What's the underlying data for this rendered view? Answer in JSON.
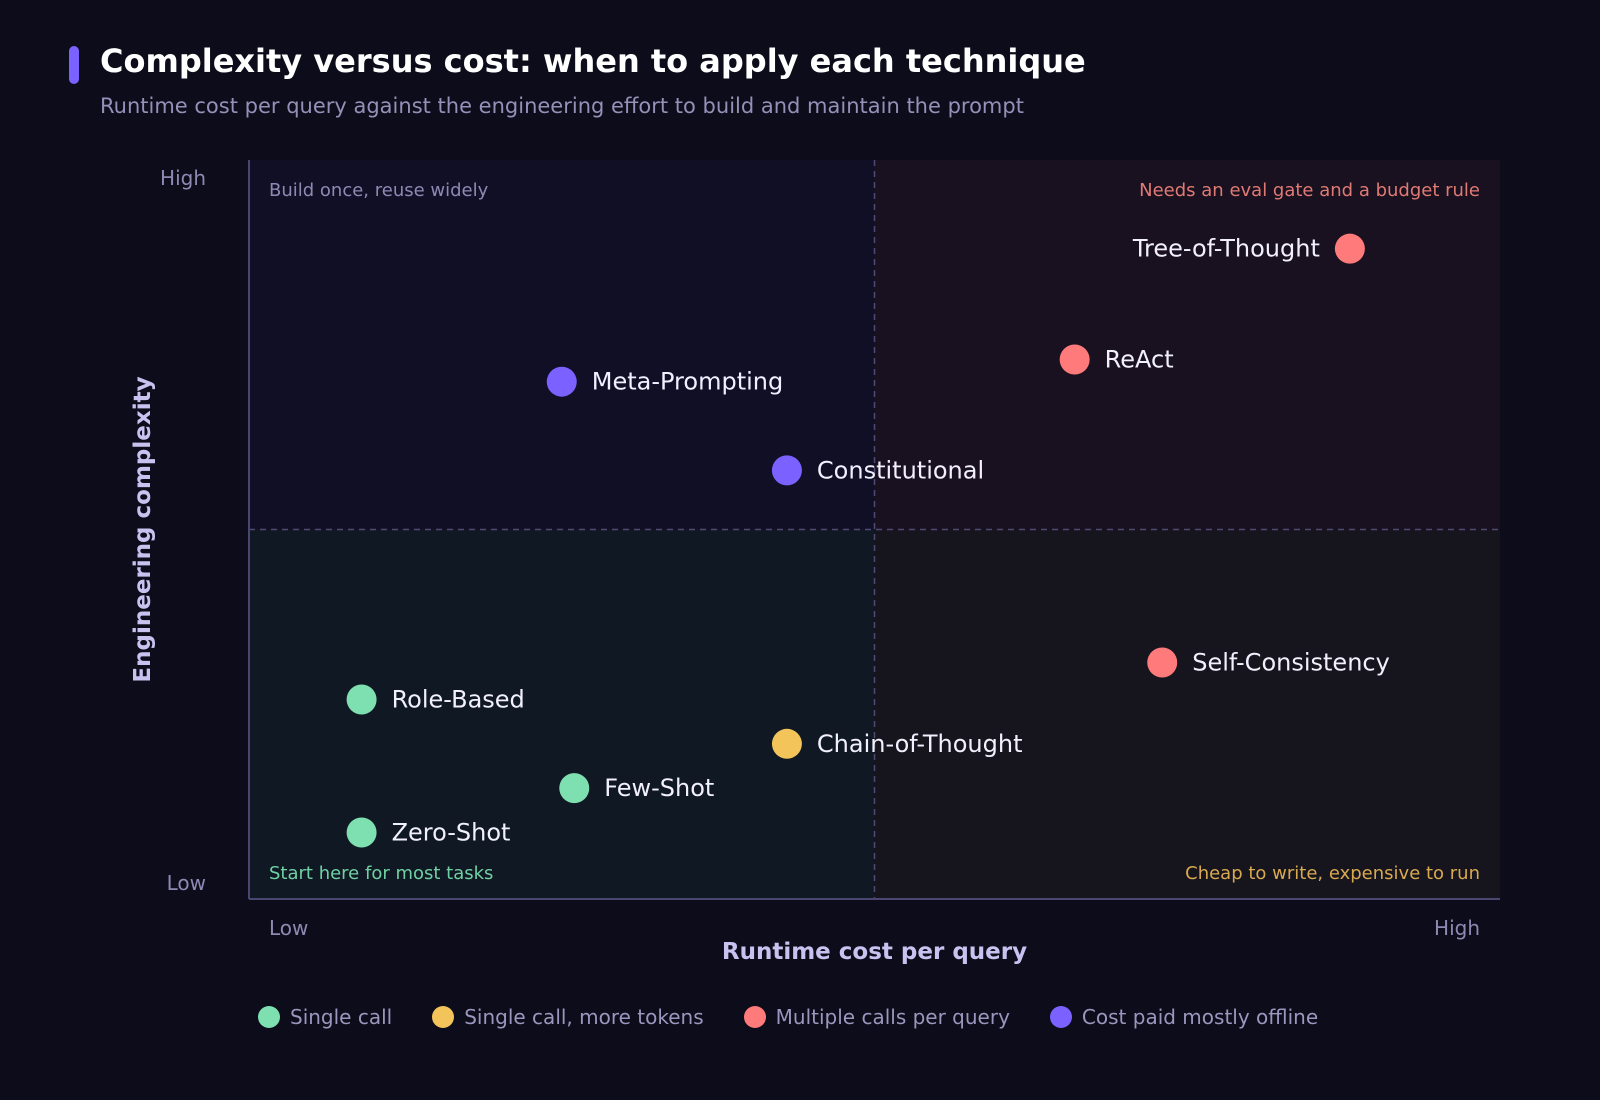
{
  "header": {
    "title": "Complexity versus cost: when to apply each technique",
    "subtitle": "Runtime cost per query against the engineering effort to build and maintain the prompt"
  },
  "colors": {
    "background": "#0c0c1a",
    "accent": "#7b61ff",
    "single_call": "#7ee0b0",
    "single_call_more_tokens": "#f2c45a",
    "multiple_calls": "#ff7b7b",
    "offline": "#7b61ff"
  },
  "chart_data": {
    "type": "scatter",
    "xlabel": "Runtime cost per query",
    "ylabel": "Engineering complexity",
    "x_ticks": [
      "Low",
      "High"
    ],
    "y_ticks": [
      "Low",
      "High"
    ],
    "xlim": [
      0,
      1
    ],
    "ylim": [
      0,
      1
    ],
    "grid": false,
    "legend_placement": "bottom",
    "quadrant_labels": {
      "top_left": "Build once, reuse widely",
      "top_right": "Needs an eval gate and a budget rule",
      "bottom_left": "Start here for most tasks",
      "bottom_right": "Cheap to write, expensive to run"
    },
    "categories": [
      {
        "key": "single",
        "name": "Single call",
        "color": "#7ee0b0"
      },
      {
        "key": "tokens",
        "name": "Single call, more tokens",
        "color": "#f2c45a"
      },
      {
        "key": "multi",
        "name": "Multiple calls per query",
        "color": "#ff7b7b"
      },
      {
        "key": "offline",
        "name": "Cost paid mostly offline",
        "color": "#7b61ff"
      }
    ],
    "points": [
      {
        "label": "Tree-of-Thought",
        "x": 0.88,
        "y": 0.88,
        "category": "multi",
        "label_side": "left"
      },
      {
        "label": "ReAct",
        "x": 0.66,
        "y": 0.73,
        "category": "multi",
        "label_side": "right"
      },
      {
        "label": "Meta-Prompting",
        "x": 0.25,
        "y": 0.7,
        "category": "offline",
        "label_side": "right"
      },
      {
        "label": "Constitutional",
        "x": 0.43,
        "y": 0.58,
        "category": "offline",
        "label_side": "right"
      },
      {
        "label": "Self-Consistency",
        "x": 0.73,
        "y": 0.32,
        "category": "multi",
        "label_side": "right"
      },
      {
        "label": "Role-Based",
        "x": 0.09,
        "y": 0.27,
        "category": "single",
        "label_side": "right"
      },
      {
        "label": "Chain-of-Thought",
        "x": 0.43,
        "y": 0.21,
        "category": "tokens",
        "label_side": "right"
      },
      {
        "label": "Few-Shot",
        "x": 0.26,
        "y": 0.15,
        "category": "single",
        "label_side": "right"
      },
      {
        "label": "Zero-Shot",
        "x": 0.09,
        "y": 0.09,
        "category": "single",
        "label_side": "right"
      }
    ]
  }
}
